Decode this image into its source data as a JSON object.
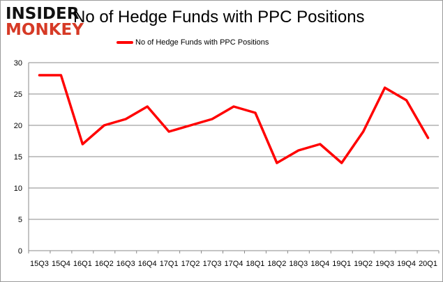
{
  "logo": {
    "line1": "INSIDER",
    "line2": "MONKEY"
  },
  "chart_data": {
    "type": "line",
    "title": "No of Hedge Funds with PPC Positions",
    "xlabel": "",
    "ylabel": "",
    "categories": [
      "15Q3",
      "15Q4",
      "16Q1",
      "16Q2",
      "16Q3",
      "16Q4",
      "17Q1",
      "17Q2",
      "17Q3",
      "17Q4",
      "18Q1",
      "18Q2",
      "18Q3",
      "18Q4",
      "19Q1",
      "19Q2",
      "19Q3",
      "19Q4",
      "20Q1"
    ],
    "series": [
      {
        "name": "No of Hedge Funds with PPC Positions",
        "color": "#ff0000",
        "values": [
          28,
          28,
          17,
          20,
          21,
          23,
          19,
          20,
          21,
          23,
          22,
          14,
          16,
          17,
          14,
          19,
          26,
          24,
          18
        ]
      }
    ],
    "ylim": [
      0,
      30
    ],
    "yticks": [
      0,
      5,
      10,
      15,
      20,
      25,
      30
    ],
    "grid": true,
    "legend": "top"
  }
}
